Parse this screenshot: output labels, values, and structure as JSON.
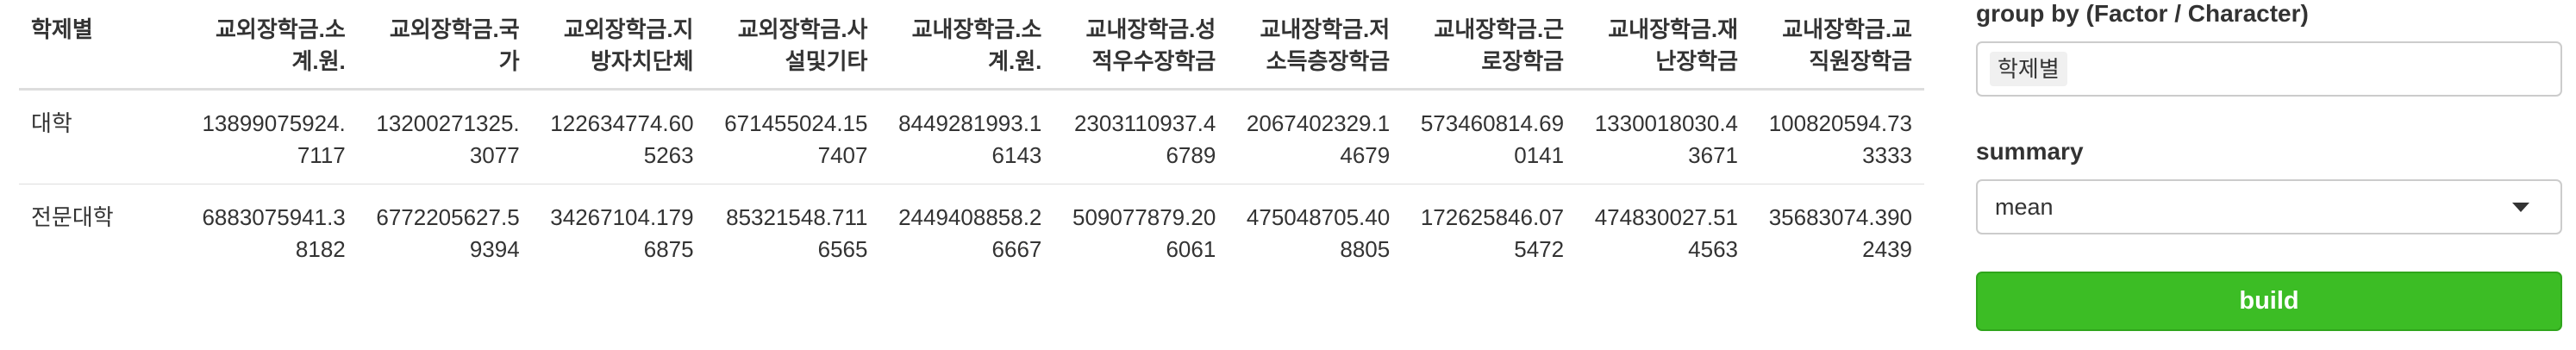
{
  "table": {
    "headers": [
      "학제별",
      "교외장학금.소계.원.",
      "교외장학금.국가",
      "교외장학금.지방자치단체",
      "교외장학금.사설및기타",
      "교내장학금.소계.원.",
      "교내장학금.성적우수장학금",
      "교내장학금.저소득층장학금",
      "교내장학금.근로장학금",
      "교내장학금.재난장학금",
      "교내장학금.교직원장학금"
    ],
    "rows": [
      [
        "대학",
        "13899075924.7117",
        "13200271325.3077",
        "122634774.605263",
        "671455024.157407",
        "8449281993.16143",
        "2303110937.46789",
        "2067402329.14679",
        "573460814.690141",
        "1330018030.43671",
        "100820594.733333"
      ],
      [
        "전문대학",
        "6883075941.38182",
        "6772205627.59394",
        "34267104.1796875",
        "85321548.7116565",
        "2449408858.26667",
        "509077879.206061",
        "475048705.408805",
        "172625846.075472",
        "474830027.514563",
        "35683074.3902439"
      ]
    ]
  },
  "panel": {
    "group_by_label": "group by (Factor / Character)",
    "group_by_value": "학제별",
    "summary_label": "summary",
    "summary_value": "mean",
    "build_label": "build"
  },
  "colors": {
    "build_button": "#3cbd25",
    "header_rule": "#dddddd",
    "input_border": "#cccccc"
  },
  "icons": {
    "summary_dropdown": "caret-down-icon"
  }
}
